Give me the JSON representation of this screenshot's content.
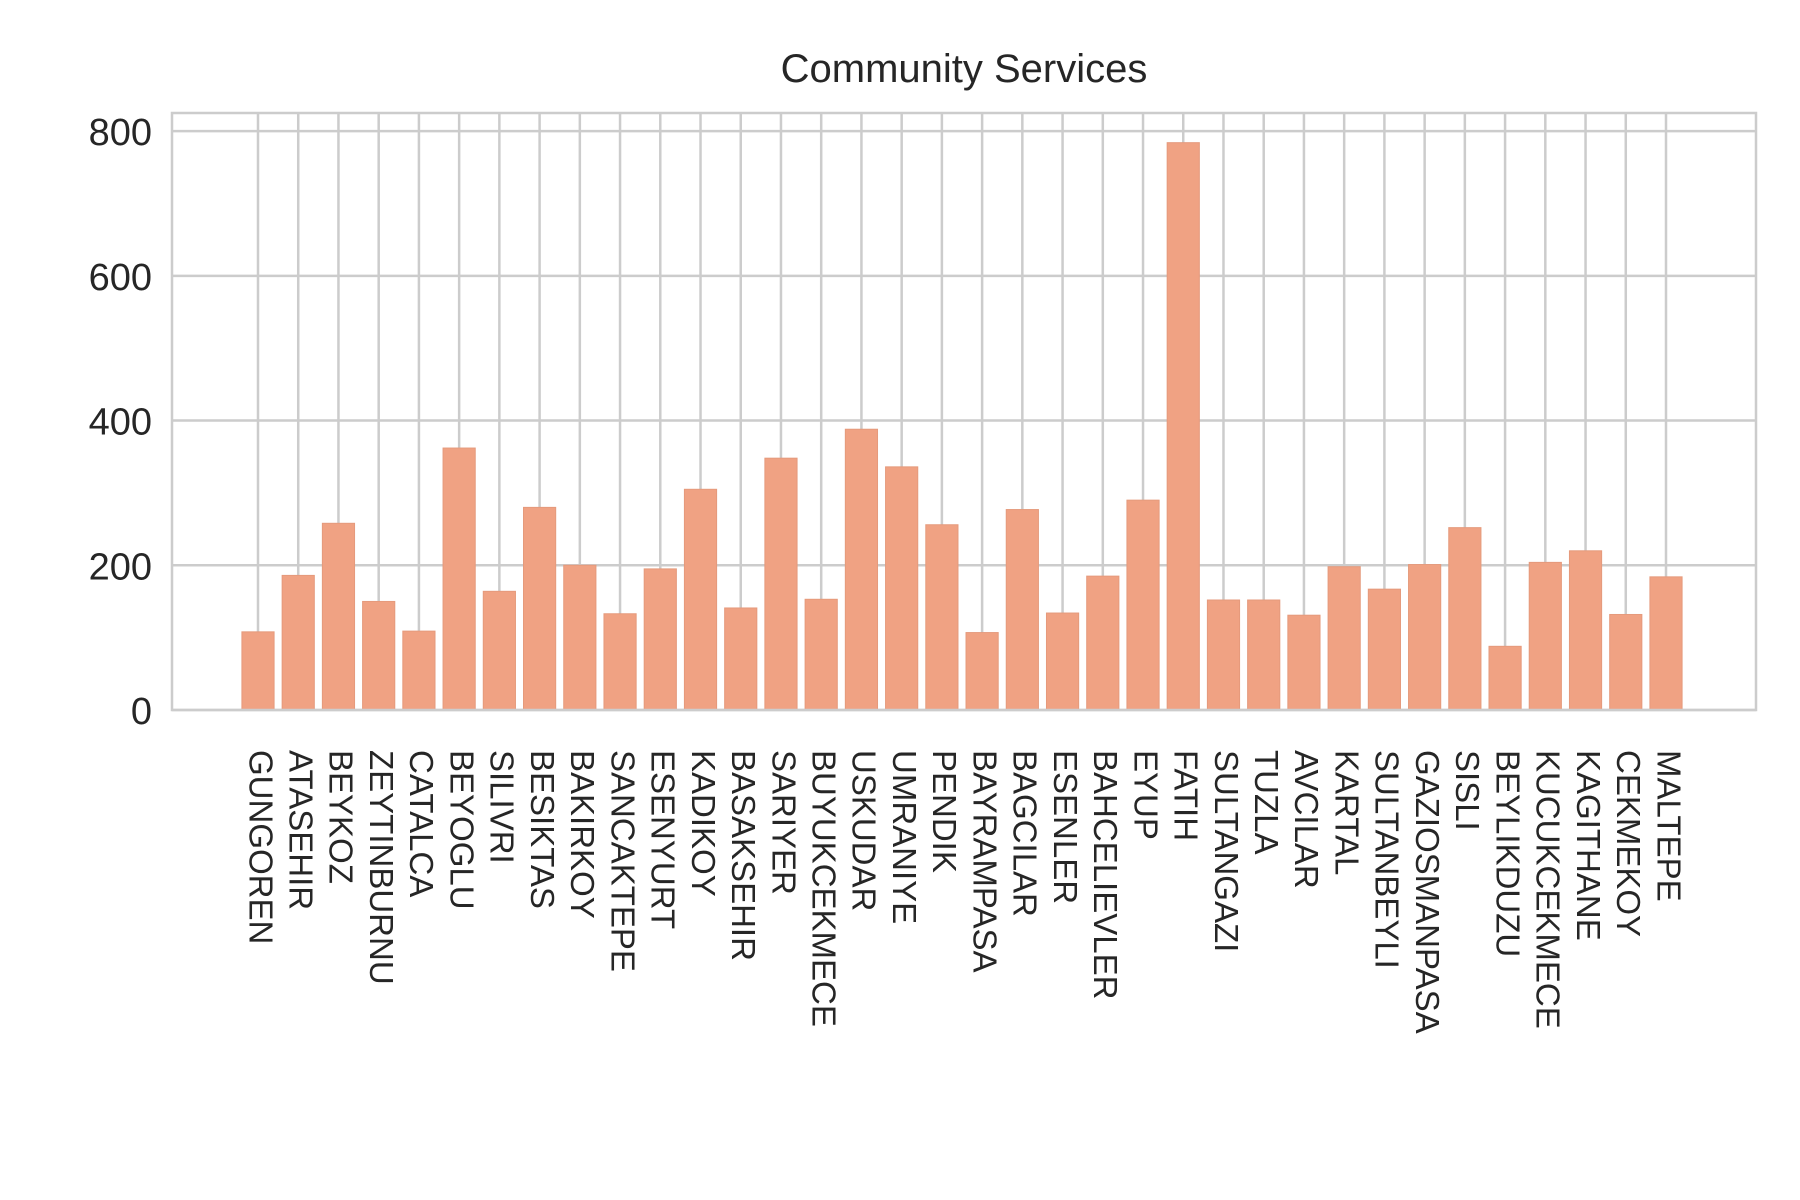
{
  "chart_data": {
    "type": "bar",
    "title": "Community Services",
    "xlabel": "",
    "ylabel": "",
    "ylim": [
      0,
      825
    ],
    "yticks": [
      0,
      200,
      400,
      600,
      800
    ],
    "grid": true,
    "colors": {
      "bar": "#f0a283",
      "grid": "#cccccc",
      "frame": "#cccccc",
      "text": "#262626"
    },
    "categories": [
      "GUNGOREN",
      "ATASEHIR",
      "BEYKOZ",
      "ZEYTINBURNU",
      "CATALCA",
      "BEYOGLU",
      "SILIVRI",
      "BESIKTAS",
      "BAKIRKOY",
      "SANCAKTEPE",
      "ESENYURT",
      "KADIKOY",
      "BASAKSEHIR",
      "SARIYER",
      "BUYUKCEKMECE",
      "USKUDAR",
      "UMRANIYE",
      "PENDIK",
      "BAYRAMPASA",
      "BAGCILAR",
      "ESENLER",
      "BAHCELIEVLER",
      "EYUP",
      "FATIH",
      "SULTANGAZI",
      "TUZLA",
      "AVCILAR",
      "KARTAL",
      "SULTANBEYLI",
      "GAZIOSMANPASA",
      "SISLI",
      "BEYLIKDUZU",
      "KUCUKCEKMECE",
      "KAGITHANE",
      "CEKMEKOY",
      "MALTEPE"
    ],
    "values": [
      108,
      186,
      258,
      150,
      109,
      362,
      164,
      280,
      200,
      133,
      195,
      305,
      141,
      348,
      153,
      388,
      336,
      256,
      107,
      277,
      134,
      185,
      290,
      784,
      152,
      152,
      131,
      198,
      167,
      201,
      252,
      88,
      204,
      220,
      132,
      184
    ]
  }
}
